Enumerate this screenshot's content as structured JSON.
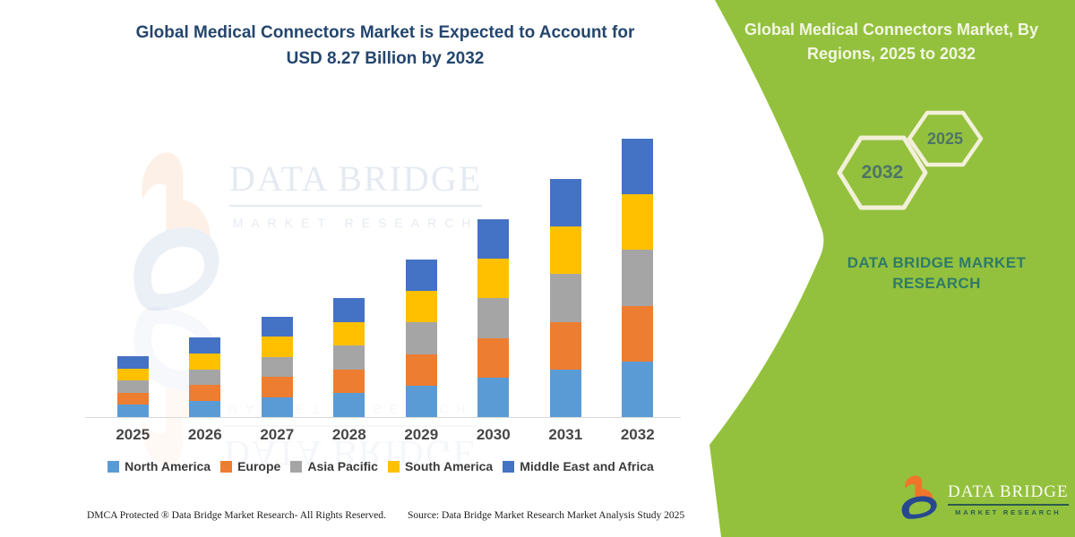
{
  "title": {
    "line1": "Global Medical Connectors Market is Expected to Account for",
    "line2": "USD 8.27 Billion by 2032"
  },
  "chart_data": {
    "type": "bar",
    "stacked": true,
    "title": "Global Medical Connectors Market is Expected to Account for USD 8.27 Billion by 2032",
    "xlabel": "",
    "ylabel": "",
    "y_axis_visible": false,
    "gridlines": false,
    "legend_position": "bottom",
    "value_units": "relative height units (chart shows no y-axis scale); totals grow from 68 (2025) to 311 (2032)",
    "categories": [
      "2025",
      "2026",
      "2027",
      "2028",
      "2029",
      "2030",
      "2031",
      "2032"
    ],
    "series": [
      {
        "name": "North America",
        "color": "#5B9BD5",
        "values": [
          13.6,
          17.8,
          22.4,
          26.6,
          35.2,
          44.2,
          53.2,
          62.2
        ]
      },
      {
        "name": "Europe",
        "color": "#ED7D31",
        "values": [
          13.6,
          17.8,
          22.4,
          26.6,
          35.2,
          44.2,
          53.2,
          62.2
        ]
      },
      {
        "name": "Asia Pacific",
        "color": "#A5A5A5",
        "values": [
          13.6,
          17.8,
          22.4,
          26.6,
          35.2,
          44.2,
          53.2,
          62.2
        ]
      },
      {
        "name": "South America",
        "color": "#FFC000",
        "values": [
          13.6,
          17.8,
          22.4,
          26.6,
          35.2,
          44.2,
          53.2,
          62.2
        ]
      },
      {
        "name": "Middle East and Africa",
        "color": "#4472C4",
        "values": [
          13.6,
          17.8,
          22.4,
          26.6,
          35.2,
          44.2,
          53.2,
          62.2
        ]
      }
    ]
  },
  "watermark": {
    "brand": "DATA BRIDGE",
    "sub": "MARKET RESEARCH"
  },
  "footer": {
    "dmca": "DMCA Protected ® Data Bridge Market Research- All Rights Reserved.",
    "source": "Source: Data Bridge Market Research Market Analysis Study 2025"
  },
  "panel": {
    "heading_line1": "Global Medical Connectors Market, By",
    "heading_line2": "Regions, 2025 to 2032",
    "hexagon_back_year": "2032",
    "hexagon_front_year": "2025",
    "brand_caps": "DATA BRIDGE MARKET RESEARCH",
    "background_color": "#93C13D",
    "hexagon_border_color": "#F3F0DA",
    "hexagon_text_color": "#4F7468",
    "brand_text_color": "#2F7A68"
  },
  "logo": {
    "brand": "DATA BRIDGE",
    "sub": "MARKET RESEARCH"
  },
  "colors": {
    "title_navy": "#24466E",
    "axis_gray": "#D9D9D9"
  }
}
